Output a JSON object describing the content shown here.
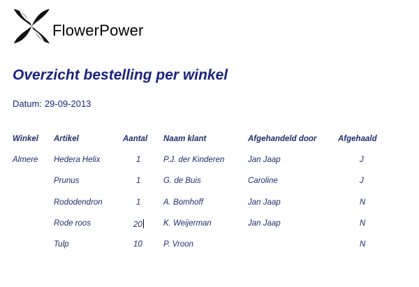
{
  "brand": {
    "name": "FlowerPower",
    "logo_icon": "flower-cross-logo"
  },
  "report": {
    "title": "Overzicht bestelling per winkel",
    "date_label": "Datum:",
    "date_value": "29-09-2013"
  },
  "table": {
    "columns": [
      "Winkel",
      "Artikel",
      "Aantal",
      "Naam klant",
      "Afgehandeld door",
      "Afgehaald"
    ],
    "rows": [
      {
        "winkel": "Almere",
        "artikel": "Hedera Helix",
        "aantal": "1",
        "klant": "P.J. der Kinderen",
        "door": "Jan Jaap",
        "afgehaald": "J"
      },
      {
        "winkel": "",
        "artikel": "Prunus",
        "aantal": "1",
        "klant": "G. de Buis",
        "door": "Caroline",
        "afgehaald": "J"
      },
      {
        "winkel": "",
        "artikel": "Rododendron",
        "aantal": "1",
        "klant": "A. Bomhoff",
        "door": "Jan Jaap",
        "afgehaald": "N"
      },
      {
        "winkel": "",
        "artikel": "Rode roos",
        "aantal": "20",
        "klant": "K. Weijerman",
        "door": "Jan Jaap",
        "afgehaald": "N"
      },
      {
        "winkel": "",
        "artikel": "Tulp",
        "aantal": "10",
        "klant": "P. Vroon",
        "door": "",
        "afgehaald": "N"
      }
    ]
  },
  "colors": {
    "text": "#1f2d6e",
    "title": "#1a237e",
    "logo": "#111111"
  }
}
